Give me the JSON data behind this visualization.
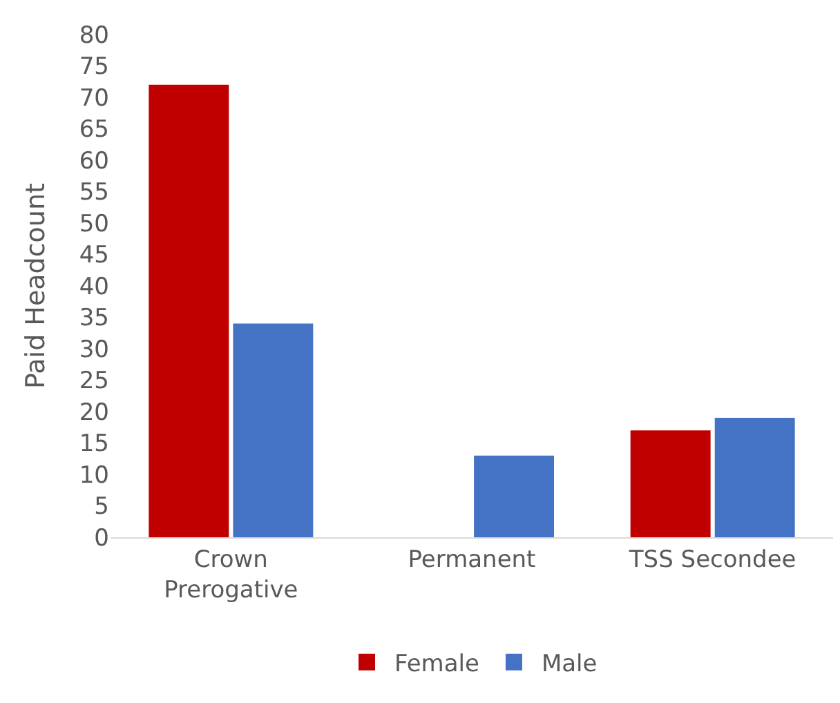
{
  "chart_data": {
    "type": "bar",
    "ylabel": "Paid Headcount",
    "categories": [
      "Crown\nPrerogative",
      "Permanent",
      "TSS Secondee"
    ],
    "series": [
      {
        "name": "Female",
        "color": "#c00000",
        "values": [
          72,
          null,
          17
        ]
      },
      {
        "name": "Male",
        "color": "#4472c4",
        "values": [
          34,
          13,
          19
        ]
      }
    ],
    "ylim": [
      0,
      80
    ],
    "yticks": [
      0,
      5,
      10,
      15,
      20,
      25,
      30,
      35,
      40,
      45,
      50,
      55,
      60,
      65,
      70,
      75,
      80
    ],
    "grid": false,
    "legend": "bottom"
  }
}
